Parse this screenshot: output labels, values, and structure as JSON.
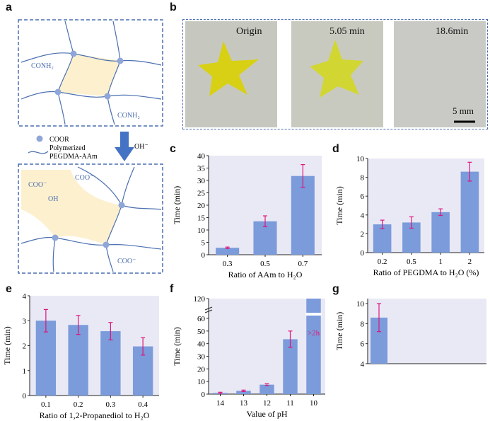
{
  "panel_labels": {
    "a": "a",
    "b": "b",
    "c": "c",
    "d": "d",
    "e": "e",
    "f": "f",
    "g": "g"
  },
  "schematic": {
    "conh2_top": "CONH₂",
    "conh2_right": "CONH₂",
    "legend_dot": "COOR",
    "legend_line_1": "Polymerized",
    "legend_line_2": "PEGDMA-AAm",
    "arrow_label": "OH⁻",
    "coo_1": "COO⁻",
    "coo_2": "COO⁻",
    "oh": "OH",
    "coo_3": "COO⁻",
    "colors": {
      "frame": "#4a6fb0",
      "fiber": "#4a6fb0",
      "node": "#8fa6d8",
      "pore": "#fdf0cf",
      "arrow": "#4472c4"
    }
  },
  "photos": {
    "labels": [
      "Origin",
      "5.05 min",
      "18.6min"
    ],
    "scale_bar": "5 mm",
    "colors": {
      "bg": "#c6c8c0",
      "star": "#d8d014"
    }
  },
  "chart_data": [
    {
      "id": "c",
      "type": "bar",
      "categories": [
        "0.3",
        "0.5",
        "0.7"
      ],
      "values": [
        2.8,
        13.5,
        31.8
      ],
      "errors": [
        0.3,
        2.2,
        4.6
      ],
      "ylim": [
        0,
        40
      ],
      "yticks": [
        0,
        5,
        10,
        15,
        20,
        25,
        30,
        35,
        40
      ],
      "xlabel": "Ratio of AAm to H₂O",
      "ylabel": "Time (min)"
    },
    {
      "id": "d",
      "type": "bar",
      "categories": [
        "0.2",
        "0.5",
        "1",
        "2"
      ],
      "values": [
        3.0,
        3.2,
        4.3,
        8.6
      ],
      "errors": [
        0.45,
        0.6,
        0.35,
        1.0
      ],
      "ylim": [
        0,
        10
      ],
      "yticks": [
        0,
        2,
        4,
        6,
        8,
        10
      ],
      "xlabel": "Ratio of PEGDMA to H₂O (%)",
      "ylabel": "Time (min)"
    },
    {
      "id": "e",
      "type": "bar",
      "categories": [
        "0.1",
        "0.2",
        "0.3",
        "0.4"
      ],
      "values": [
        3.0,
        2.83,
        2.58,
        1.97
      ],
      "errors": [
        0.45,
        0.38,
        0.35,
        0.35
      ],
      "ylim": [
        0,
        4
      ],
      "yticks": [
        0,
        1,
        2,
        3,
        4
      ],
      "xlabel": "Ratio of 1,2-Propanediol to H₂O",
      "ylabel": "Time (min)"
    },
    {
      "id": "f",
      "type": "bar",
      "categories": [
        "14",
        "13",
        "12",
        "11",
        "10"
      ],
      "values": [
        1.0,
        2.6,
        7.5,
        43.5,
        120
      ],
      "errors": [
        0.5,
        0.6,
        0.7,
        6.5,
        0
      ],
      "yticks": [
        0,
        10,
        20,
        30,
        40,
        50,
        60,
        120
      ],
      "axis_break": [
        60,
        120
      ],
      "bar_note": ">2h",
      "xlabel": "Value of pH",
      "ylabel": "Time (min)"
    },
    {
      "id": "g",
      "type": "bar",
      "categories": [
        ""
      ],
      "values": [
        8.6
      ],
      "errors": [
        1.4
      ],
      "ylim": [
        4,
        10.5
      ],
      "yticks": [
        4,
        6,
        8,
        10
      ],
      "xlabel": "",
      "ylabel": "Time (min)"
    }
  ],
  "colors": {
    "bar": "#7b9bdb",
    "plot_bg": "#e9e9f5",
    "error": "#e0147a"
  }
}
